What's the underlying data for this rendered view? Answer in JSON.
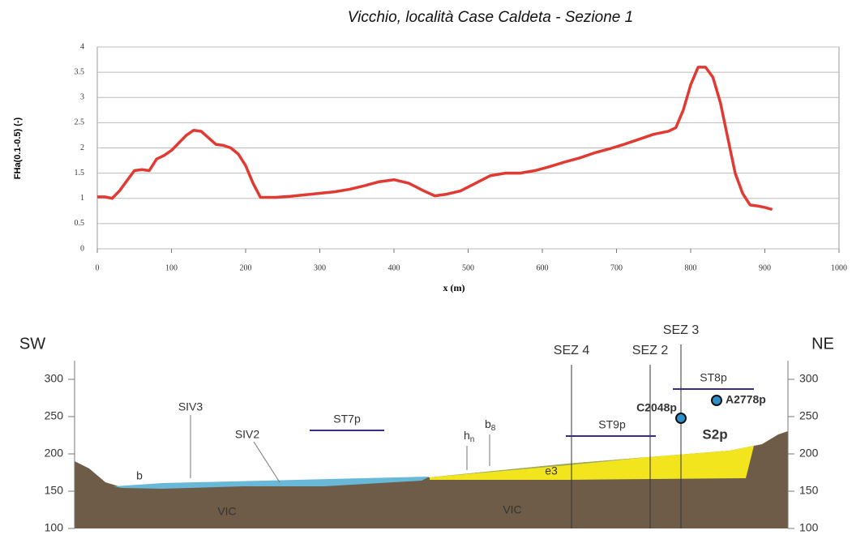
{
  "chart_data": {
    "type": "line",
    "title": "Vicchio, località Case Caldeta - Sezione 1",
    "x_label": "x (m)",
    "y_label": "FHa(0.1-0.5) (-)",
    "color": "#e03a33",
    "grid": true,
    "xlim": [
      0,
      1000
    ],
    "xticks": [
      0,
      100,
      200,
      300,
      400,
      500,
      600,
      700,
      800,
      900,
      1000
    ],
    "ylim": [
      0,
      4
    ],
    "yticks": [
      0,
      0.5,
      1,
      1.5,
      2,
      2.5,
      3,
      3.5,
      4
    ],
    "x": [
      0,
      10,
      20,
      30,
      40,
      50,
      60,
      70,
      80,
      90,
      100,
      110,
      120,
      130,
      140,
      150,
      160,
      170,
      180,
      190,
      200,
      210,
      220,
      240,
      260,
      280,
      300,
      320,
      340,
      360,
      380,
      400,
      420,
      440,
      455,
      470,
      490,
      510,
      530,
      550,
      570,
      590,
      610,
      630,
      650,
      670,
      690,
      710,
      730,
      750,
      770,
      780,
      790,
      800,
      810,
      820,
      830,
      840,
      850,
      860,
      870,
      880,
      890,
      900,
      910
    ],
    "values": [
      1.03,
      1.03,
      1.0,
      1.15,
      1.35,
      1.55,
      1.57,
      1.55,
      1.78,
      1.85,
      1.95,
      2.1,
      2.25,
      2.35,
      2.33,
      2.2,
      2.07,
      2.05,
      2.0,
      1.88,
      1.65,
      1.3,
      1.02,
      1.02,
      1.04,
      1.07,
      1.1,
      1.13,
      1.18,
      1.25,
      1.33,
      1.37,
      1.3,
      1.15,
      1.05,
      1.08,
      1.15,
      1.3,
      1.45,
      1.5,
      1.5,
      1.55,
      1.63,
      1.72,
      1.8,
      1.9,
      1.98,
      2.07,
      2.17,
      2.27,
      2.33,
      2.4,
      2.75,
      3.25,
      3.6,
      3.6,
      3.4,
      2.9,
      2.2,
      1.5,
      1.1,
      0.87,
      0.85,
      0.82,
      0.78
    ]
  },
  "section": {
    "left": "SW",
    "right": "NE",
    "ylim": [
      100,
      300
    ],
    "yticks": [
      100,
      150,
      200,
      250,
      300
    ],
    "labels": {
      "siv3": "SIV3",
      "siv2": "SIV2",
      "st7p": "ST7p",
      "b": "b",
      "vic1": "VIC",
      "vic2": "VIC",
      "hn": {
        "base": "h",
        "sub": "n"
      },
      "b8": {
        "base": "b",
        "sub": "8"
      },
      "sez4": "SEZ 4",
      "sez2": "SEZ 2",
      "sez3": "SEZ 3",
      "st8p": "ST8p",
      "st9p": "ST9p",
      "c2048p": "C2048p",
      "a2778p": "A2778p",
      "s2p": "S2p",
      "e3": "e3"
    }
  }
}
